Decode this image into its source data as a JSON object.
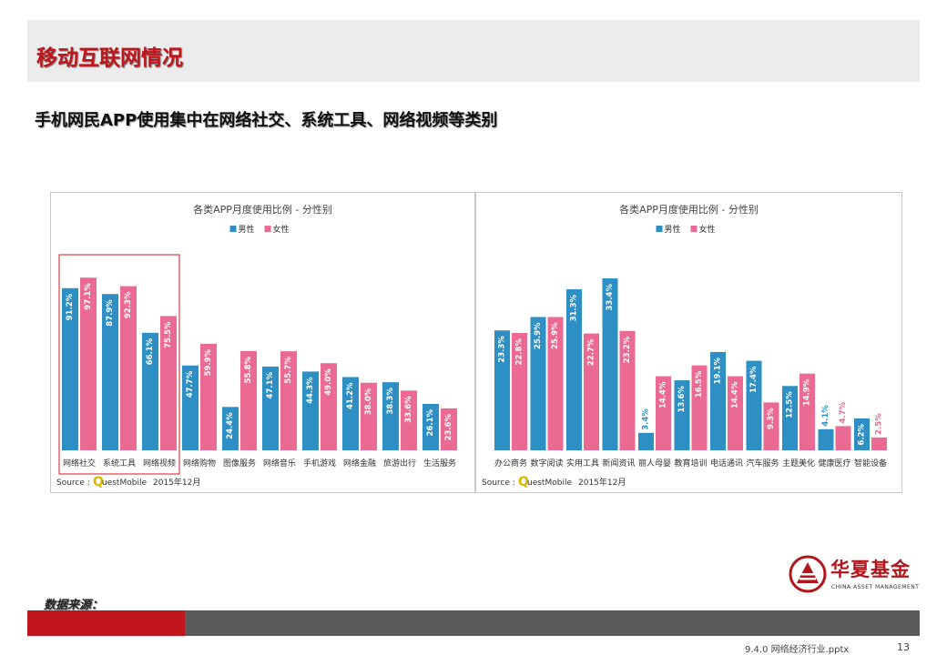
{
  "slide": {
    "title": "移动互联网情况",
    "subtitle": "手机网民APP使用集中在网络社交、系统工具、网络视频等类别",
    "source_label": "数据来源：",
    "logo_name": "华夏基金",
    "logo_sub": "CHINA ASSET MANAGEMENT",
    "file_name": "9.4.0 网络经济行业.pptx",
    "page_number": "13",
    "colors": {
      "accent": "#c0171d",
      "footer_dark": "#5a5a5a",
      "male": "#2e8fc4",
      "female": "#ea6a93"
    }
  },
  "chart_data": [
    {
      "type": "bar",
      "title": "各类APP月度使用比例 - 分性别",
      "legend": [
        "男性",
        "女性"
      ],
      "legend_position": "top",
      "categories": [
        "网络社交",
        "系统工具",
        "网络视频",
        "网络购物",
        "图像服务",
        "网络音乐",
        "手机游戏",
        "网络金融",
        "旅游出行",
        "生活服务"
      ],
      "series": [
        {
          "name": "男性",
          "values": [
            91.2,
            87.9,
            66.1,
            47.7,
            24.4,
            47.1,
            44.3,
            41.2,
            38.3,
            26.1
          ],
          "labels": [
            "91.2%",
            "87.9%",
            "66.1%",
            "47.7%",
            "24.4%",
            "47.1%",
            "44.3%",
            "41.2%",
            "38.3%",
            "26.1%"
          ]
        },
        {
          "name": "女性",
          "values": [
            97.1,
            92.3,
            75.5,
            59.9,
            55.8,
            55.7,
            49.0,
            38.0,
            33.6,
            23.6
          ],
          "labels": [
            "97.1%",
            "92.3%",
            "75.5%",
            "59.9%",
            "55.8%",
            "55.7%",
            "49.0%",
            "38.0%",
            "33.6%",
            "23.6%"
          ]
        }
      ],
      "ylim": [
        0,
        110
      ],
      "grid": false,
      "highlight_categories": [
        0,
        1,
        2
      ],
      "source_prefix": "Source :",
      "source_brand": "QuestMobile",
      "source_date": "2015年12月"
    },
    {
      "type": "bar",
      "title": "各类APP月度使用比例 - 分性别",
      "legend": [
        "男性",
        "女性"
      ],
      "legend_position": "top",
      "categories": [
        "办公商务",
        "数字阅读",
        "实用工具",
        "新闻资讯",
        "丽人母婴",
        "教育培训",
        "电话通讯",
        "汽车服务",
        "主题美化",
        "健康医疗",
        "智能设备"
      ],
      "series": [
        {
          "name": "男性",
          "values": [
            23.3,
            25.9,
            31.3,
            33.4,
            3.4,
            13.6,
            19.1,
            17.4,
            12.5,
            4.1,
            6.2
          ],
          "labels": [
            "23.3%",
            "25.9%",
            "31.3%",
            "33.4%",
            "3.4%",
            "13.6%",
            "19.1%",
            "17.4%",
            "12.5%",
            "4.1%",
            "6.2%"
          ]
        },
        {
          "name": "女性",
          "values": [
            22.8,
            25.9,
            22.7,
            23.2,
            14.4,
            16.5,
            14.4,
            9.3,
            14.9,
            4.7,
            2.5
          ],
          "labels": [
            "22.8%",
            "25.9%",
            "22.7%",
            "23.2%",
            "14.4%",
            "16.5%",
            "14.4%",
            "9.3%",
            "14.9%",
            "4.7%",
            "2.5%"
          ]
        }
      ],
      "ylim": [
        0,
        38
      ],
      "grid": false,
      "source_prefix": "Source :",
      "source_brand": "QuestMobile",
      "source_date": "2015年12月"
    }
  ]
}
